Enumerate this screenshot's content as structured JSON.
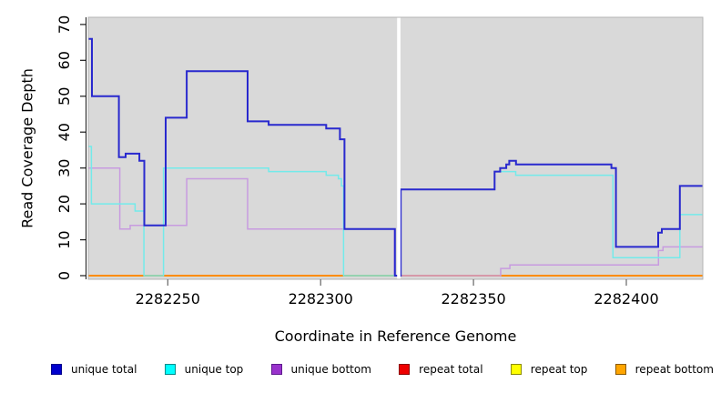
{
  "chart_data": {
    "type": "line",
    "title": "",
    "xlabel": "Coordinate in Reference Genome",
    "ylabel": "Read Coverage Depth",
    "xlim": [
      2282224,
      2282425
    ],
    "ylim": [
      0,
      72
    ],
    "xticks": [
      2282250,
      2282300,
      2282350,
      2282400
    ],
    "yticks": [
      0,
      10,
      20,
      30,
      40,
      50,
      60,
      70
    ],
    "grid": false,
    "legend_position": "bottom",
    "panel_bg": "#d9d9d9",
    "panel_border": "#b3b3b3",
    "axis_color": "#1a1a1a",
    "x_tick_color": "#666666",
    "gap": {
      "from": 2282325.0,
      "to": 2282326.1,
      "color": "#ffffff"
    },
    "draw_order": [
      "repeat total",
      "repeat top",
      "repeat bottom",
      "unique bottom",
      "unique top",
      "unique total"
    ],
    "series": [
      {
        "name": "unique total",
        "legend_fill": "#0000cd",
        "legend_border": "#00008b",
        "line_color": "#2929ce",
        "line_width": 2,
        "steps": [
          [
            2282224,
            66
          ],
          [
            2282225.2,
            50
          ],
          [
            2282234,
            33
          ],
          [
            2282236.2,
            34
          ],
          [
            2282240.7,
            32
          ],
          [
            2282242.3,
            14
          ],
          [
            2282249.3,
            44
          ],
          [
            2282256.2,
            57
          ],
          [
            2282276.1,
            43
          ],
          [
            2282283,
            42
          ],
          [
            2282301.8,
            41
          ],
          [
            2282306.3,
            38
          ],
          [
            2282307.8,
            13
          ],
          [
            2282324.3,
            0
          ],
          [
            2282326.2,
            24
          ],
          [
            2282356.9,
            29
          ],
          [
            2282358.7,
            30
          ],
          [
            2282360.7,
            31
          ],
          [
            2282361.7,
            32
          ],
          [
            2282363.9,
            31
          ],
          [
            2282395.1,
            30
          ],
          [
            2282396.6,
            8
          ],
          [
            2282410.4,
            12
          ],
          [
            2282411.6,
            13
          ],
          [
            2282417.5,
            25
          ]
        ]
      },
      {
        "name": "unique top",
        "legend_fill": "#00ffff",
        "legend_border": "#008b8b",
        "line_color": "#73eaea",
        "line_width": 1.5,
        "steps": [
          [
            2282224,
            36
          ],
          [
            2282225,
            20
          ],
          [
            2282239.3,
            18
          ],
          [
            2282242.2,
            0
          ],
          [
            2282248.6,
            30
          ],
          [
            2282283,
            29
          ],
          [
            2282301.8,
            28
          ],
          [
            2282305.8,
            27
          ],
          [
            2282306.8,
            25
          ],
          [
            2282307.5,
            0
          ],
          [
            2282326.2,
            24
          ],
          [
            2282356.9,
            29
          ],
          [
            2282363.8,
            28
          ],
          [
            2282395.6,
            5
          ],
          [
            2282417.5,
            17
          ]
        ]
      },
      {
        "name": "unique bottom",
        "legend_fill": "#9932cc",
        "legend_border": "#5e1a8e",
        "line_color": "#c89be0",
        "line_width": 1.5,
        "steps": [
          [
            2282224,
            30
          ],
          [
            2282234.3,
            13
          ],
          [
            2282237.7,
            14
          ],
          [
            2282256.2,
            27
          ],
          [
            2282276.1,
            13
          ],
          [
            2282324.1,
            0
          ],
          [
            2282358.9,
            2
          ],
          [
            2282361.9,
            3
          ],
          [
            2282410.5,
            7
          ],
          [
            2282412,
            8
          ]
        ]
      },
      {
        "name": "repeat total",
        "legend_fill": "#ee0000",
        "legend_border": "#8b0000",
        "line_color": "#e02020",
        "line_width": 1.5,
        "steps": [
          [
            2282224,
            0
          ]
        ]
      },
      {
        "name": "repeat top",
        "legend_fill": "#ffff00",
        "legend_border": "#8b8b00",
        "line_color": "#ffff00",
        "line_width": 1.5,
        "steps": [
          [
            2282224,
            0
          ]
        ]
      },
      {
        "name": "repeat bottom",
        "legend_fill": "#ffa500",
        "legend_border": "#8b5a00",
        "line_color": "#ff8c00",
        "line_width": 2,
        "steps": [
          [
            2282224,
            0
          ]
        ]
      }
    ]
  }
}
